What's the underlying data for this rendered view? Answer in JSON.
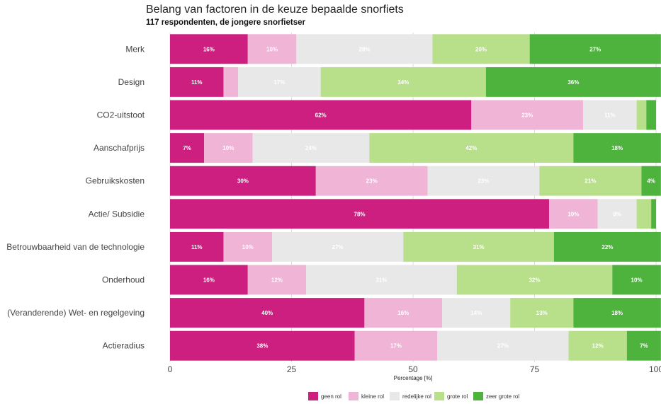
{
  "chart_data": {
    "type": "bar",
    "orientation": "horizontal",
    "stacked": true,
    "title": "Belang van factoren in de keuze bepaalde snorfiets",
    "subtitle": "117 respondenten, de jongere snorfietser",
    "xlabel": "Percentage [%]",
    "ylabel": "",
    "xlim": [
      0,
      100
    ],
    "xticks": [
      0,
      25,
      50,
      75,
      100
    ],
    "grid": true,
    "legend_position": "bottom",
    "categories": [
      "Merk",
      "Design",
      "CO2-uitstoot",
      "Aanschafprijs",
      "Gebruikskosten",
      "Actie/ Subsidie",
      "Betrouwbaarheid van de technologie",
      "Onderhoud",
      "(Veranderende) Wet- en regelgeving",
      "Actieradius"
    ],
    "series": [
      {
        "name": "geen rol",
        "color": "#cc1f7f",
        "values": [
          16,
          11,
          62,
          7,
          30,
          78,
          11,
          16,
          40,
          38
        ],
        "labels": [
          "16%",
          "11%",
          "62%",
          "7%",
          "30%",
          "78%",
          "11%",
          "16%",
          "40%",
          "38%"
        ]
      },
      {
        "name": "kleine rol",
        "color": "#f0b4d6",
        "values": [
          10,
          3,
          23,
          10,
          23,
          10,
          10,
          12,
          16,
          17
        ],
        "labels": [
          "10%",
          "",
          "23%",
          "10%",
          "23%",
          "10%",
          "10%",
          "12%",
          "16%",
          "17%"
        ]
      },
      {
        "name": "redelijke rol",
        "color": "#e8e8e8",
        "values": [
          28,
          17,
          11,
          24,
          23,
          8,
          27,
          31,
          14,
          27
        ],
        "labels": [
          "28%",
          "17%",
          "11%",
          "24%",
          "23%",
          "8%",
          "27%",
          "31%",
          "14%",
          "27%"
        ]
      },
      {
        "name": "grote rol",
        "color": "#b8e08a",
        "values": [
          20,
          34,
          2,
          42,
          21,
          3,
          31,
          32,
          13,
          12
        ],
        "labels": [
          "20%",
          "34%",
          "",
          "42%",
          "21%",
          "",
          "31%",
          "32%",
          "13%",
          "12%"
        ]
      },
      {
        "name": "zeer grote rol",
        "color": "#4db33d",
        "values": [
          27,
          36,
          2,
          18,
          4,
          1,
          22,
          10,
          18,
          7
        ],
        "labels": [
          "27%",
          "36%",
          "",
          "18%",
          "4%",
          "",
          "22%",
          "10%",
          "18%",
          "7%"
        ]
      }
    ]
  }
}
